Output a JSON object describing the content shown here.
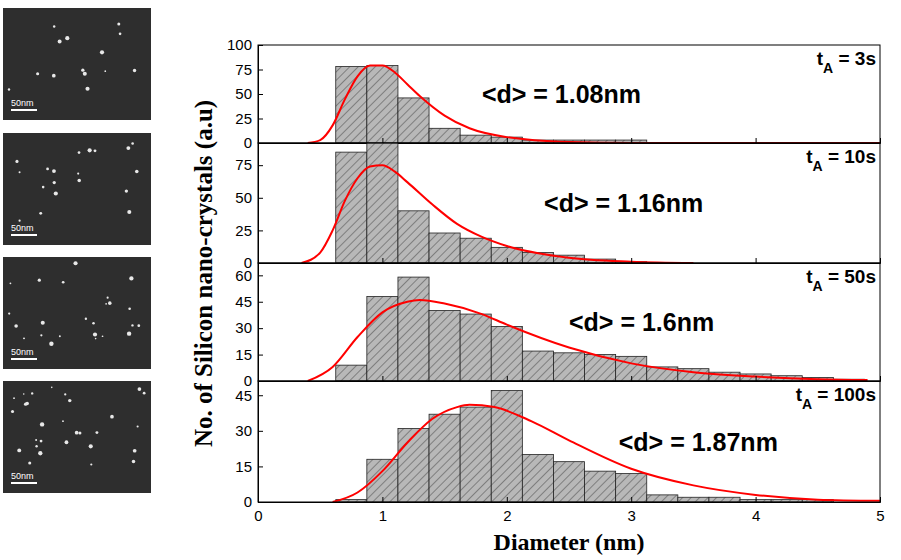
{
  "chart_data": {
    "type": "histogram",
    "xlabel": "Diameter (nm)",
    "ylabel": "No. of Silicon nano-crystals (a.u)",
    "xlim": [
      0,
      5
    ],
    "xticks": [
      0,
      1,
      2,
      3,
      4,
      5
    ],
    "color": "#b8b8b8",
    "panels": [
      {
        "title": "tA = 3s",
        "annotation": "<d> = 1.08nm",
        "ylim": [
          0,
          100
        ],
        "yticks": [
          0,
          25,
          50,
          75,
          100
        ],
        "bins": [
          0.625,
          0.875,
          1.125,
          1.375,
          1.625,
          1.875,
          2.125,
          2.375,
          2.625,
          2.875,
          3.125
        ],
        "counts": [
          78,
          79,
          46,
          15,
          8,
          6,
          3,
          3,
          3,
          3
        ],
        "fit": {
          "type": "line",
          "color": "#ff0000",
          "x": [
            0.4,
            0.5,
            0.6,
            0.7,
            0.8,
            0.9,
            1.0,
            1.1,
            1.2,
            1.3,
            1.5,
            1.7,
            2.0,
            2.5,
            3.0,
            5.0
          ],
          "y": [
            0,
            3,
            18,
            45,
            68,
            79,
            79,
            72,
            60,
            48,
            28,
            15,
            6,
            1,
            0,
            0
          ]
        },
        "image": {
          "scale_bar": "50nm"
        }
      },
      {
        "title": "tA = 10s",
        "annotation": "<d> = 1.16nm",
        "ylim": [
          0,
          92
        ],
        "yticks": [
          0,
          25,
          50,
          75
        ],
        "bins": [
          0.625,
          0.875,
          1.125,
          1.375,
          1.625,
          1.875,
          2.125,
          2.375,
          2.625,
          2.875,
          3.125
        ],
        "counts": [
          85,
          92,
          40,
          23,
          19,
          12,
          8,
          6,
          3,
          1
        ],
        "fit": {
          "type": "line",
          "color": "#ff0000",
          "x": [
            0.35,
            0.5,
            0.6,
            0.7,
            0.8,
            0.9,
            1.0,
            1.1,
            1.2,
            1.4,
            1.6,
            1.8,
            2.0,
            2.5,
            3.0,
            3.5
          ],
          "y": [
            0,
            8,
            25,
            48,
            65,
            74,
            75,
            70,
            62,
            45,
            30,
            20,
            13,
            4,
            1,
            0
          ]
        },
        "image": {
          "scale_bar": "50nm"
        }
      },
      {
        "title": "tA = 50s",
        "annotation": "<d> = 1.6nm",
        "ylim": [
          0,
          67
        ],
        "yticks": [
          0,
          15,
          30,
          45,
          60
        ],
        "bins": [
          0.625,
          0.875,
          1.125,
          1.375,
          1.625,
          1.875,
          2.125,
          2.375,
          2.625,
          2.875,
          3.125,
          3.375,
          3.625,
          3.875,
          4.125,
          4.375,
          4.625,
          4.875
        ],
        "counts": [
          9,
          48,
          59,
          40,
          38,
          31,
          17,
          16,
          15,
          14,
          8,
          7,
          5,
          4,
          3,
          2,
          1
        ],
        "fit": {
          "type": "line",
          "color": "#ff0000",
          "x": [
            0.4,
            0.6,
            0.8,
            1.0,
            1.2,
            1.3,
            1.5,
            1.8,
            2.0,
            2.5,
            3.0,
            3.5,
            4.0,
            4.5,
            4.9
          ],
          "y": [
            0,
            8,
            25,
            39,
            45,
            46,
            44,
            38,
            32,
            19,
            10,
            5,
            2.5,
            1,
            0.5
          ]
        },
        "image": {
          "scale_bar": "50nm"
        }
      },
      {
        "title": "tA = 100s",
        "annotation": "<d> = 1.87nm",
        "ylim": [
          0,
          51
        ],
        "yticks": [
          0,
          15,
          30,
          45
        ],
        "bins": [
          0.625,
          0.875,
          1.125,
          1.375,
          1.625,
          1.875,
          2.125,
          2.375,
          2.625,
          2.875,
          3.125,
          3.375,
          3.625,
          3.875,
          4.125,
          4.375,
          4.625
        ],
        "counts": [
          1,
          18,
          31,
          37,
          40,
          47,
          20,
          17,
          13,
          12,
          3,
          2,
          2,
          1,
          1,
          1
        ],
        "fit": {
          "type": "line",
          "color": "#ff0000",
          "x": [
            0.6,
            0.8,
            1.0,
            1.2,
            1.4,
            1.6,
            1.7,
            1.9,
            2.2,
            2.5,
            3.0,
            3.5,
            4.0,
            4.5,
            5.0
          ],
          "y": [
            0,
            4,
            13,
            25,
            35,
            40,
            41,
            40,
            34,
            26,
            14,
            7,
            3,
            1,
            0.5
          ]
        },
        "image": {
          "scale_bar": "50nm"
        }
      }
    ]
  }
}
